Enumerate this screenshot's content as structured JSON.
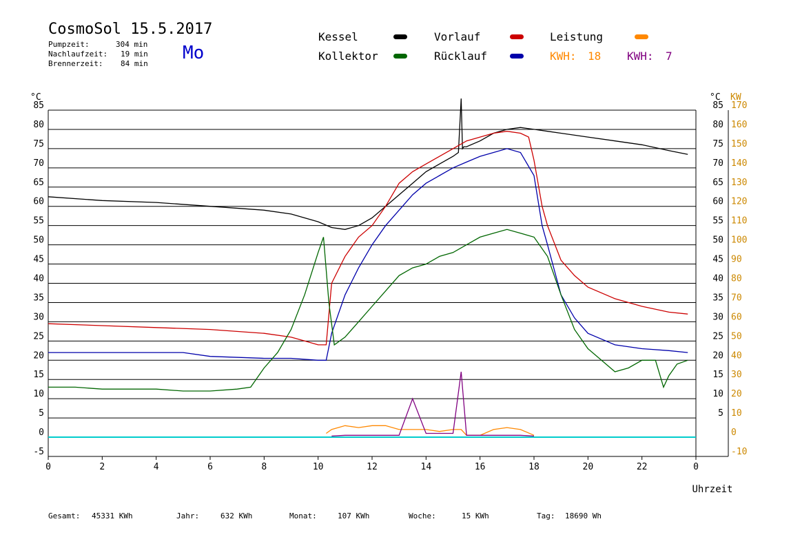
{
  "header": {
    "title": "CosmoSol 15.5.2017",
    "weekday": "Mo",
    "stats": [
      {
        "label": "Pumpzeit:",
        "value": "304 min"
      },
      {
        "label": "Nachlaufzeit:",
        "value": "19 min"
      },
      {
        "label": "Brennerzeit:",
        "value": "84 min"
      }
    ]
  },
  "legend": {
    "kessel": "Kessel",
    "kollektor": "Kollektor",
    "vorlauf": "Vorlauf",
    "ruecklauf": "Rücklauf",
    "leistung": "Leistung",
    "kwh_orange_label": "KWH:",
    "kwh_orange_value": "18",
    "kwh_purple_label": "KWH:",
    "kwh_purple_value": "7"
  },
  "colors": {
    "kessel": "#000000",
    "vorlauf": "#cc0000",
    "kollektor": "#006600",
    "ruecklauf": "#0000aa",
    "leistung": "#ff8800",
    "purple": "#800080",
    "cyan": "#00cccc",
    "kw_axis": "#cc8800"
  },
  "footer": [
    {
      "label": "Gesamt:",
      "value": "45331 KWh"
    },
    {
      "label": "Jahr:",
      "value": "632 KWh"
    },
    {
      "label": "Monat:",
      "value": "107 KWh"
    },
    {
      "label": "Woche:",
      "value": "15 KWh"
    },
    {
      "label": "Tag:",
      "value": "18690 Wh"
    }
  ],
  "chart_data": {
    "type": "line",
    "xlabel": "Uhrzeit",
    "ylabel_left": "°C",
    "ylabel_right_temp": "°C",
    "ylabel_right_kw": "KW",
    "xlim": [
      0,
      24
    ],
    "ylim": [
      -5,
      85
    ],
    "ylim_kw": [
      -10,
      170
    ],
    "x_ticks": [
      "0",
      "2",
      "4",
      "6",
      "8",
      "10",
      "12",
      "14",
      "16",
      "18",
      "20",
      "22",
      "0"
    ],
    "y_ticks_left": [
      "85",
      "80",
      "75",
      "70",
      "65",
      "60",
      "55",
      "50",
      "45",
      "40",
      "35",
      "30",
      "25",
      "20",
      "15",
      "10",
      "5",
      "0",
      "-5"
    ],
    "y_ticks_right_temp": [
      "85",
      "80",
      "75",
      "70",
      "65",
      "60",
      "55",
      "50",
      "45",
      "40",
      "35",
      "30",
      "25",
      "20",
      "15",
      "10",
      "5"
    ],
    "y_ticks_right_kw": [
      "170",
      "160",
      "150",
      "140",
      "130",
      "120",
      "110",
      "100",
      "90",
      "80",
      "70",
      "60",
      "50",
      "40",
      "30",
      "20",
      "10",
      "0",
      "-10"
    ],
    "grid": "horizontal",
    "series": [
      {
        "name": "Kessel",
        "color": "#000000",
        "x": [
          0,
          2,
          4,
          6,
          8,
          9,
          10,
          10.5,
          11,
          11.5,
          12,
          12.5,
          13,
          13.5,
          14,
          14.5,
          15,
          15.2,
          15.3,
          15.35,
          15.4,
          15.5,
          16,
          16.5,
          17,
          17.5,
          18,
          18.5,
          19,
          20,
          21,
          22,
          23,
          23.7
        ],
        "y": [
          62.5,
          61.5,
          61,
          60,
          59,
          58,
          56,
          54.5,
          54,
          55,
          57,
          60,
          63,
          66,
          69,
          71,
          73,
          74,
          88,
          75,
          75.5,
          75.5,
          77,
          79,
          80,
          80.5,
          80,
          79.5,
          79,
          78,
          77,
          76,
          74.5,
          73.5
        ]
      },
      {
        "name": "Vorlauf",
        "color": "#cc0000",
        "x": [
          0,
          2,
          4,
          6,
          8,
          9,
          9.5,
          10,
          10.3,
          10.5,
          11,
          11.5,
          12,
          12.5,
          13,
          13.5,
          14,
          14.5,
          15,
          15.5,
          16,
          16.5,
          17,
          17.5,
          17.8,
          18,
          18.3,
          18.5,
          19,
          19.5,
          20,
          21,
          22,
          23,
          23.7
        ],
        "y": [
          29.5,
          29,
          28.5,
          28,
          27,
          26,
          25,
          24,
          24,
          40,
          47,
          52,
          55,
          60,
          66,
          69,
          71,
          73,
          75,
          77,
          78,
          79,
          79.5,
          79,
          78,
          72,
          60,
          55,
          46,
          42,
          39,
          36,
          34,
          32.5,
          32
        ]
      },
      {
        "name": "Rücklauf",
        "color": "#0000aa",
        "x": [
          0,
          2,
          4,
          5,
          6,
          8,
          9,
          10,
          10.3,
          10.5,
          11,
          11.5,
          12,
          12.5,
          13,
          13.5,
          14,
          14.5,
          15,
          15.5,
          16,
          16.5,
          17,
          17.5,
          18,
          18.3,
          18.5,
          19,
          19.5,
          20,
          21,
          22,
          23,
          23.7
        ],
        "y": [
          22,
          22,
          22,
          22,
          21,
          20.5,
          20.5,
          20,
          20,
          27,
          37,
          44,
          50,
          55,
          59,
          63,
          66,
          68,
          70,
          71.5,
          73,
          74,
          75,
          74,
          68,
          55,
          50,
          37,
          31,
          27,
          24,
          23,
          22.5,
          22
        ]
      },
      {
        "name": "Kollektor",
        "color": "#006600",
        "x": [
          0,
          1,
          2,
          3,
          4,
          5,
          6,
          7,
          7.5,
          8,
          8.5,
          9,
          9.5,
          10,
          10.2,
          10.4,
          10.6,
          11,
          11.5,
          12,
          12.5,
          13,
          13.5,
          14,
          14.5,
          15,
          15.5,
          16,
          16.5,
          17,
          17.5,
          18,
          18.5,
          19,
          19.5,
          20,
          20.5,
          21,
          21.5,
          22,
          22.5,
          22.8,
          23,
          23.3,
          23.7
        ],
        "y": [
          13,
          13,
          12.5,
          12.5,
          12.5,
          12,
          12,
          12.5,
          13,
          18,
          22,
          28,
          37,
          48,
          52,
          35,
          24,
          26,
          30,
          34,
          38,
          42,
          44,
          45,
          47,
          48,
          50,
          52,
          53,
          54,
          53,
          52,
          47,
          37,
          28,
          23,
          20,
          17,
          18,
          20,
          20,
          13,
          16,
          19,
          20
        ]
      },
      {
        "name": "Leistung",
        "color": "#ff8800",
        "x": [
          10.3,
          10.5,
          11,
          11.5,
          12,
          12.5,
          13,
          13.5,
          14,
          14.5,
          15,
          15.3,
          15.5,
          16,
          16.5,
          17,
          17.5,
          18
        ],
        "y": [
          1,
          2,
          3,
          2.5,
          3,
          3,
          2,
          2,
          2,
          1.5,
          2,
          2,
          0.5,
          0.5,
          2,
          2.5,
          2,
          0.5
        ]
      },
      {
        "name": "KWH 7",
        "color": "#800080",
        "x": [
          10.5,
          11,
          12,
          13,
          13.5,
          14,
          14.5,
          15,
          15.3,
          15.5,
          16,
          17,
          17.5,
          18
        ],
        "y": [
          0.3,
          0.5,
          0.5,
          0.5,
          10,
          1,
          1,
          1,
          17,
          0.5,
          0.5,
          0.5,
          0.5,
          0.3
        ]
      }
    ]
  }
}
